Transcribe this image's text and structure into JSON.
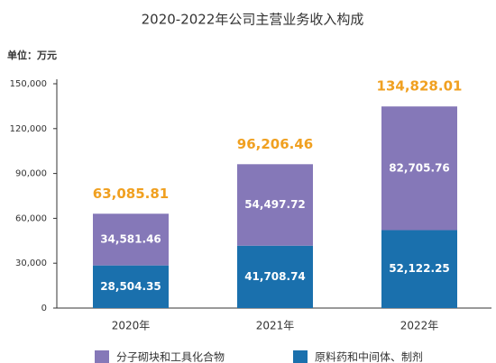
{
  "chart_data": {
    "type": "stacked_bar",
    "title": "2020-2022年公司主营业务收入构成",
    "unit_label": "单位：万元",
    "categories": [
      "2020年",
      "2021年",
      "2022年"
    ],
    "series": [
      {
        "name": "原料药和中间体、制剂",
        "color": "#1a70ad",
        "values": [
          28504.35,
          41708.74,
          52122.25
        ],
        "value_labels": [
          "28,504.35",
          "41,708.74",
          "52,122.25"
        ]
      },
      {
        "name": "分子砌块和工具化合物",
        "color": "#8578b8",
        "values": [
          34581.46,
          54497.72,
          82705.76
        ],
        "value_labels": [
          "34,581.46",
          "54,497.72",
          "82,705.76"
        ]
      }
    ],
    "totals": [
      63085.81,
      96206.46,
      134828.01
    ],
    "total_labels": [
      "63,085.81",
      "96,206.46",
      "134,828.01"
    ],
    "ylim": [
      0,
      150000
    ],
    "yticks": [
      0,
      {
        "value": 30000,
        "label": "30,000"
      },
      {
        "value": 60000,
        "label": "60,000"
      },
      {
        "value": 90000,
        "label": "90,000"
      },
      {
        "value": 120000,
        "label": "120,000"
      },
      {
        "value": 150000,
        "label": "150,000"
      }
    ],
    "legend": "bottom"
  }
}
